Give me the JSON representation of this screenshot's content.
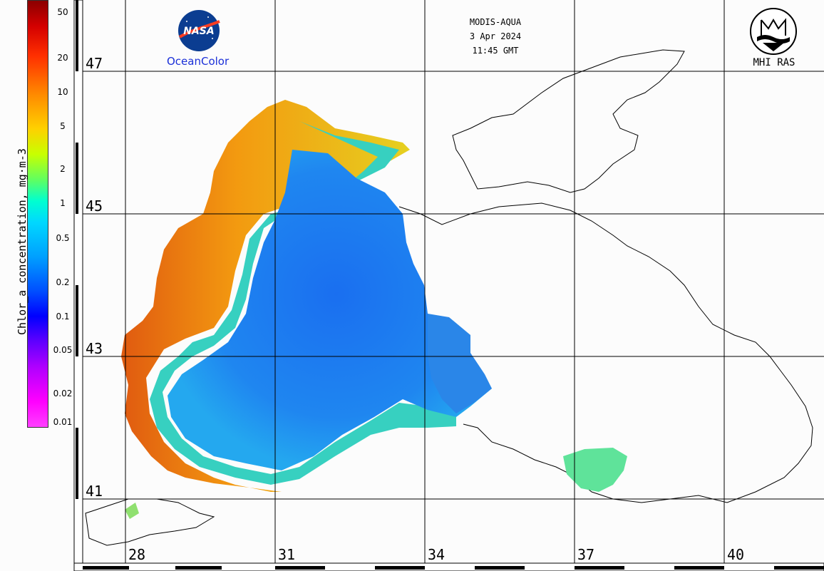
{
  "header": {
    "satellite": "MODIS-AQUA",
    "date": "3 Apr 2024",
    "time": "11:45 GMT"
  },
  "logos": {
    "nasa_badge": "NASA",
    "ocean_color": "OceanColor",
    "institute": "MHI RAS"
  },
  "legend": {
    "title": "Chlor_a concentration, mg·m-3",
    "ticks": [
      "50",
      "20",
      "10",
      "5",
      "2",
      "1",
      "0.5",
      "0.2",
      "0.1",
      "0.05",
      "0.02",
      "0.01"
    ],
    "colors": {
      "high": "#8b0000",
      "mid_high": "#ff8a00",
      "mid": "#c8ff00",
      "mid_low": "#00d8ff",
      "low": "#0050ff",
      "lowest": "#ff40ff"
    }
  },
  "latitude_labels": [
    "47",
    "45",
    "43",
    "41"
  ],
  "longitude_labels": [
    "28",
    "31",
    "34",
    "37",
    "40"
  ],
  "map": {
    "region": "Black Sea",
    "scale": "log",
    "palette": "rainbow"
  }
}
